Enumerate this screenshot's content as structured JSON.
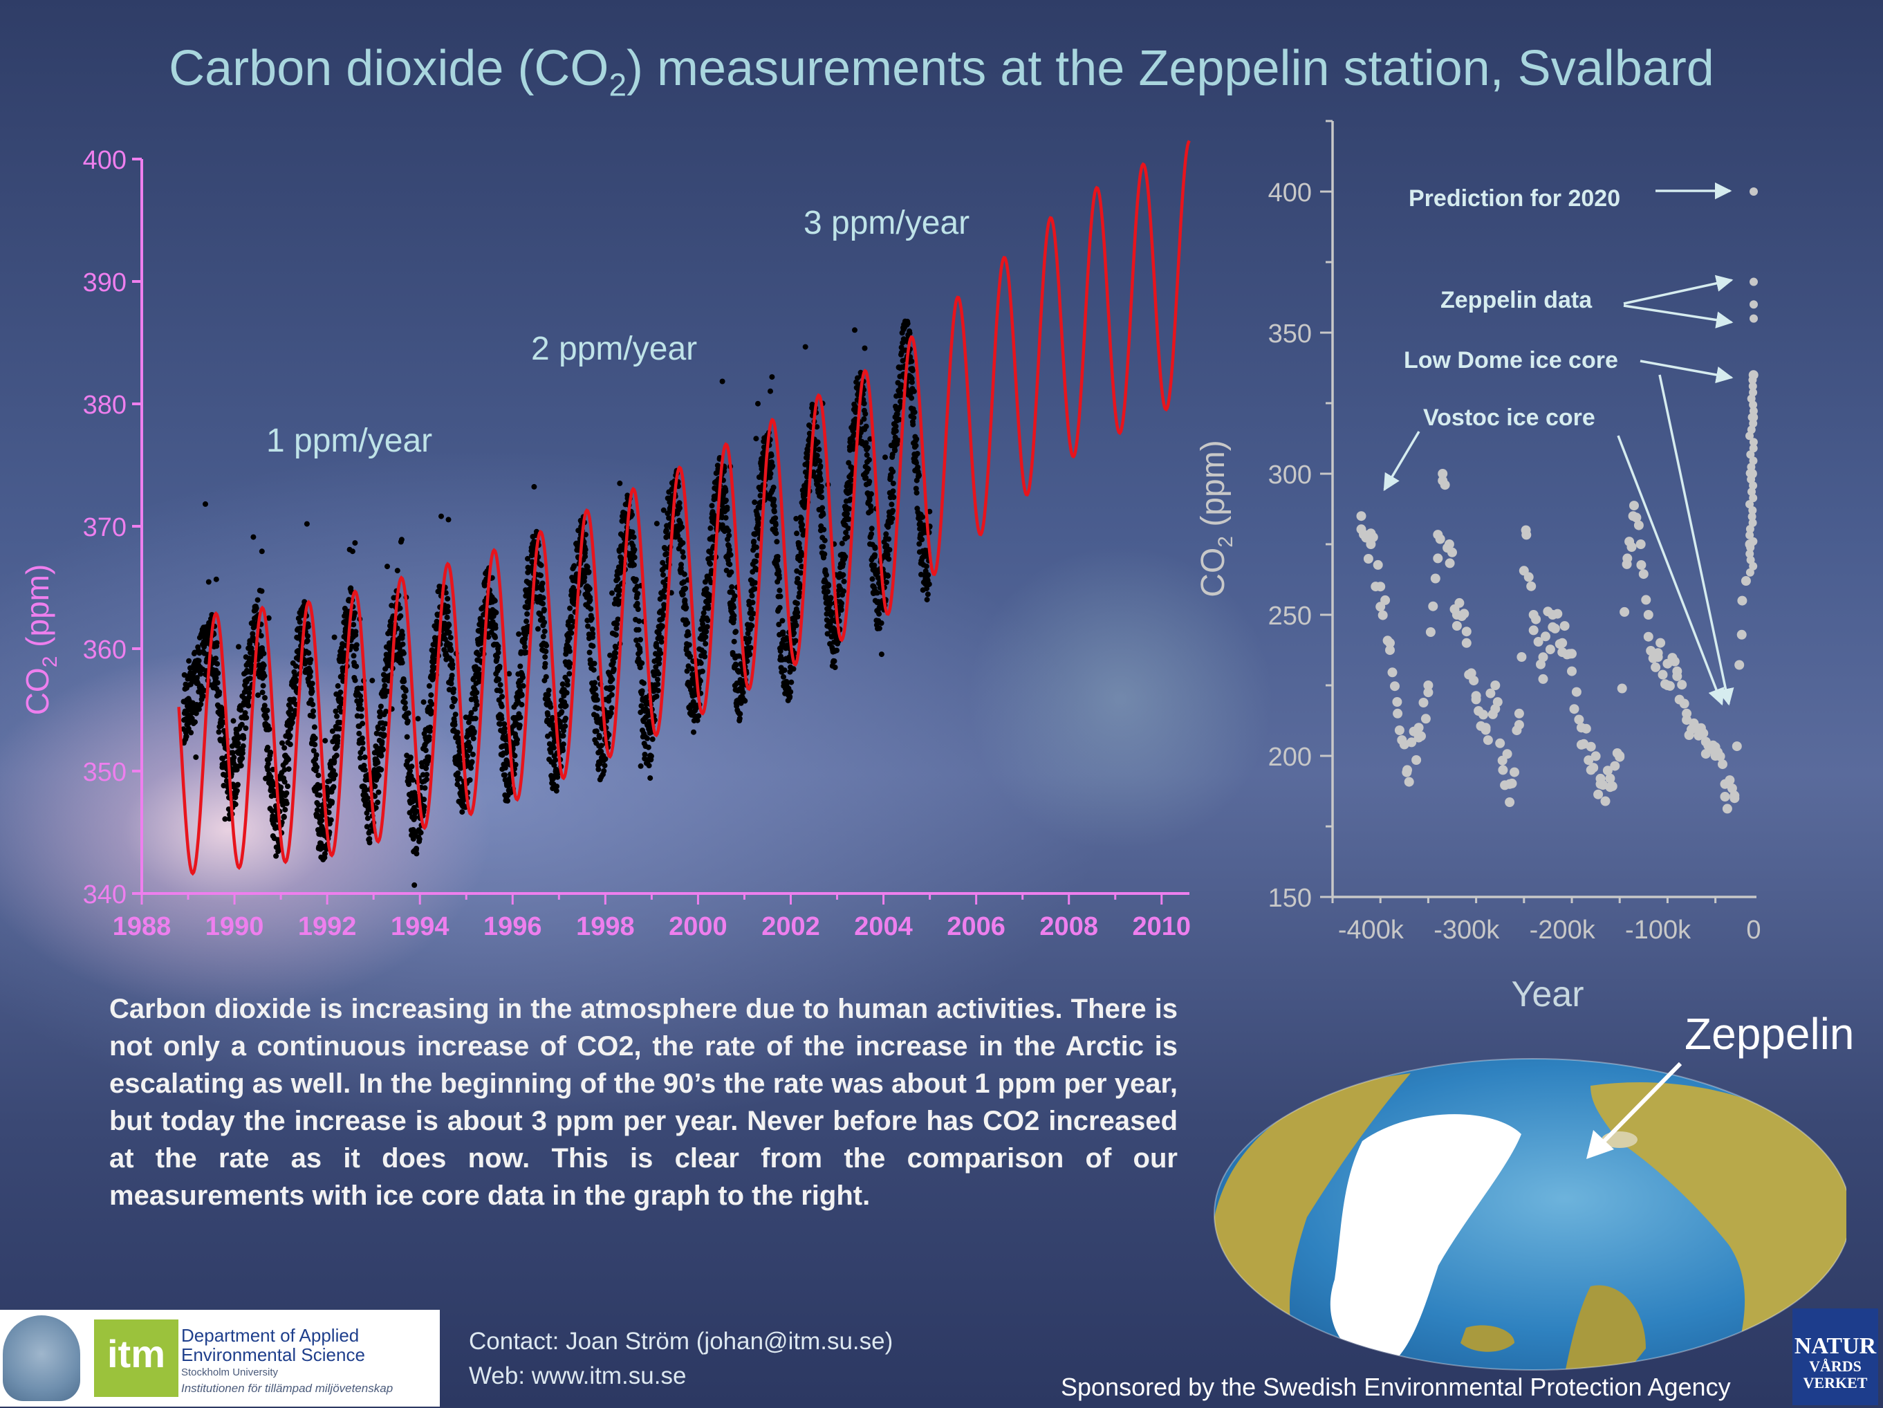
{
  "page": {
    "title_main": "Carbon dioxide (CO",
    "title_sub": "2",
    "title_rest": ") measurements at the Zeppelin station, Svalbard",
    "body_text": "Carbon dioxide is increasing in the atmosphere due to human activities. There is not only a continuous increase of CO2, the rate of the increase in the Arctic is escalating as well. In the beginning of the 90’s the rate was about 1 ppm per year, but today the increase is about 3 ppm per year. Never before has CO2 increased at the rate as it does now. This is clear from the comparison of our measurements with ice core data in the graph to the right.",
    "map_label": "Zeppelin",
    "contact": "Contact: Joan Ström (johan@itm.su.se)",
    "web": "Web: www.itm.su.se",
    "sponsor": "Sponsored by the Swedish Environmental Protection Agency",
    "logo_itm": "itm",
    "logo_dept_line1": "Department of Applied",
    "logo_dept_line2": "Environmental Science",
    "logo_university": "Stockholm University",
    "logo_institute": "Institutionen för tillämpad miljövetenskap",
    "logo_nv_line1": "NATUR",
    "logo_nv_line2": "VÅRDS",
    "logo_nv_line3": "VERKET",
    "colors": {
      "title": "#a9d6de",
      "axis_magenta": "#ee7fee",
      "fit_red": "#e8141c",
      "obs_black": "#000000",
      "ice_grey": "#c8c8c8",
      "annotation": "#d6ecef"
    }
  },
  "chart_data": [
    {
      "type": "scatter",
      "ylabel": "CO2 (ppm)",
      "ylabel_main": "CO",
      "ylabel_sub": "2",
      "ylabel_rest": " (ppm)",
      "xlim": [
        1988,
        2010.6
      ],
      "ylim": [
        340,
        400
      ],
      "x_ticks": [
        1988,
        1990,
        1992,
        1994,
        1996,
        1998,
        2000,
        2002,
        2004,
        2006,
        2008,
        2010
      ],
      "y_ticks": [
        340,
        350,
        360,
        370,
        380,
        390,
        400
      ],
      "annotations": [
        "1 ppm/year",
        "2 ppm/year",
        "3 ppm/year"
      ],
      "series": [
        {
          "kind": "observations",
          "x_range": [
            1988.9,
            2005.0
          ],
          "seasonal_amplitude_ppm": 8,
          "points": [
            [
              1988.9,
              355
            ],
            [
              1989.5,
              360
            ],
            [
              1989.9,
              349
            ],
            [
              1990.5,
              361
            ],
            [
              1990.9,
              346
            ],
            [
              1991.5,
              361
            ],
            [
              1991.9,
              345
            ],
            [
              1992.5,
              362
            ],
            [
              1992.9,
              347
            ],
            [
              1993.5,
              362
            ],
            [
              1993.9,
              346
            ],
            [
              1994.5,
              363
            ],
            [
              1994.9,
              349
            ],
            [
              1995.5,
              364
            ],
            [
              1995.9,
              350
            ],
            [
              1996.5,
              367
            ],
            [
              1996.9,
              351
            ],
            [
              1997.5,
              368
            ],
            [
              1997.9,
              352
            ],
            [
              1998.5,
              370
            ],
            [
              1998.9,
              353
            ],
            [
              1999.5,
              372
            ],
            [
              1999.9,
              356
            ],
            [
              2000.5,
              373
            ],
            [
              2000.9,
              357
            ],
            [
              2001.5,
              375
            ],
            [
              2001.9,
              358
            ],
            [
              2002.5,
              377
            ],
            [
              2002.9,
              361
            ],
            [
              2003.5,
              380
            ],
            [
              2003.9,
              364
            ],
            [
              2004.5,
              384
            ],
            [
              2004.9,
              367
            ]
          ]
        },
        {
          "kind": "fit",
          "x_range": [
            1988.8,
            2010.6
          ],
          "seasonal_amplitude_ppm": 10.5,
          "trend": [
            [
              1988.8,
              352
            ],
            [
              1992,
              353.5
            ],
            [
              1996,
              358
            ],
            [
              2000,
              365
            ],
            [
              2004,
              373
            ],
            [
              2008,
              386
            ],
            [
              2010.6,
              391
            ]
          ]
        }
      ]
    },
    {
      "type": "scatter",
      "xlabel": "Year",
      "ylabel": "CO2 (ppm)",
      "ylabel_main": "CO",
      "ylabel_sub": "2",
      "ylabel_rest": " (ppm)",
      "xlim": [
        -440000,
        0
      ],
      "ylim": [
        150,
        420
      ],
      "x_ticks": [
        -400000,
        -300000,
        -200000,
        -100000,
        0
      ],
      "x_tick_labels": [
        "-400k",
        "-300k",
        "-200k",
        "-100k",
        "0"
      ],
      "y_ticks": [
        150,
        200,
        250,
        300,
        350,
        400
      ],
      "annotations": [
        "Prediction for 2020",
        "Zeppelin data",
        "Low Dome ice core",
        "Vostoc ice core"
      ],
      "series": [
        {
          "kind": "ice_core",
          "points": [
            [
              -410000,
              285
            ],
            [
              -400000,
              275
            ],
            [
              -390000,
              260
            ],
            [
              -380000,
              240
            ],
            [
              -372000,
              215
            ],
            [
              -362000,
              195
            ],
            [
              -350000,
              210
            ],
            [
              -340000,
              225
            ],
            [
              -330000,
              270
            ],
            [
              -325000,
              300
            ],
            [
              -318000,
              275
            ],
            [
              -310000,
              250
            ],
            [
              -300000,
              240
            ],
            [
              -290000,
              220
            ],
            [
              -280000,
              210
            ],
            [
              -270000,
              225
            ],
            [
              -262000,
              195
            ],
            [
              -255000,
              190
            ],
            [
              -245000,
              215
            ],
            [
              -238000,
              280
            ],
            [
              -230000,
              250
            ],
            [
              -220000,
              235
            ],
            [
              -210000,
              250
            ],
            [
              -200000,
              240
            ],
            [
              -190000,
              230
            ],
            [
              -180000,
              210
            ],
            [
              -170000,
              195
            ],
            [
              -160000,
              190
            ],
            [
              -150000,
              192
            ],
            [
              -140000,
              200
            ],
            [
              -132000,
              270
            ],
            [
              -126000,
              285
            ],
            [
              -118000,
              275
            ],
            [
              -110000,
              250
            ],
            [
              -100000,
              235
            ],
            [
              -90000,
              225
            ],
            [
              -80000,
              230
            ],
            [
              -70000,
              215
            ],
            [
              -60000,
              210
            ],
            [
              -50000,
              205
            ],
            [
              -40000,
              200
            ],
            [
              -30000,
              190
            ],
            [
              -20000,
              185
            ],
            [
              -12000,
              255
            ],
            [
              -8000,
              262
            ],
            [
              -4000,
              275
            ],
            [
              -1500,
              300
            ],
            [
              -600,
              320
            ],
            [
              -200,
              335
            ]
          ]
        },
        {
          "kind": "zeppelin",
          "points": [
            [
              0,
              368
            ],
            [
              0,
              360
            ],
            [
              0,
              355
            ]
          ]
        },
        {
          "kind": "prediction",
          "points": [
            [
              0,
              400
            ]
          ]
        }
      ]
    }
  ]
}
